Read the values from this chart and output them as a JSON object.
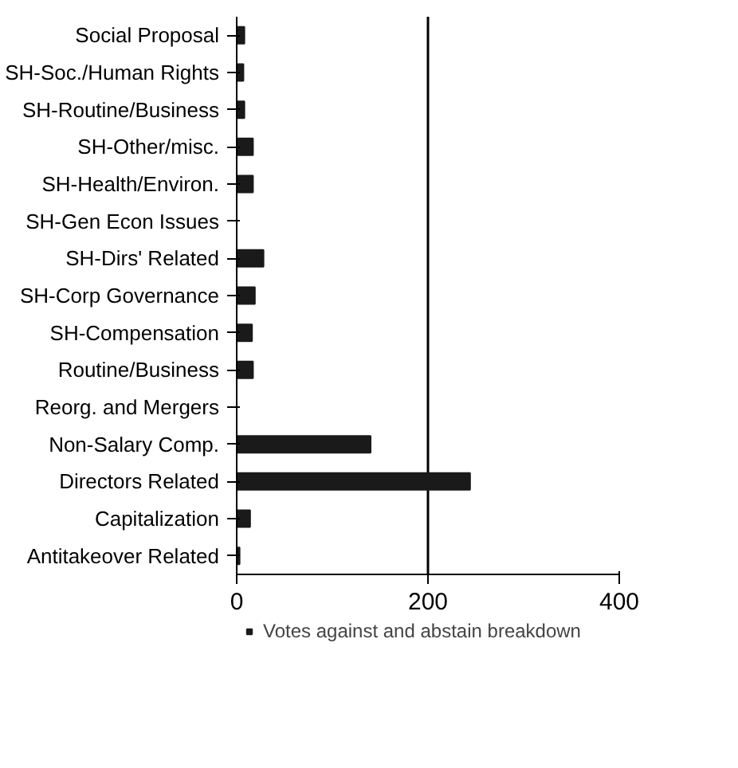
{
  "chart_data": {
    "type": "bar",
    "orientation": "horizontal",
    "categories": [
      "Social Proposal",
      "SH-Soc./Human Rights",
      "SH-Routine/Business",
      "SH-Other/misc.",
      "SH-Health/Environ.",
      "SH-Gen Econ Issues",
      "SH-Dirs' Related",
      "SH-Corp Governance",
      "SH-Compensation",
      "Routine/Business",
      "Reorg. and Mergers",
      "Non-Salary Comp.",
      "Directors Related",
      "Capitalization",
      "Antitakeover Related"
    ],
    "series": [
      {
        "name": "Votes against and abstain breakdown",
        "color": "#1a1a1a",
        "values": [
          8,
          7,
          8,
          17,
          17,
          0,
          28,
          19,
          16,
          17,
          0,
          140,
          244,
          14,
          3
        ]
      }
    ],
    "xlim": [
      0,
      400
    ],
    "xticks": [
      0,
      200,
      400
    ],
    "grid": "x",
    "legend": "bottom"
  }
}
